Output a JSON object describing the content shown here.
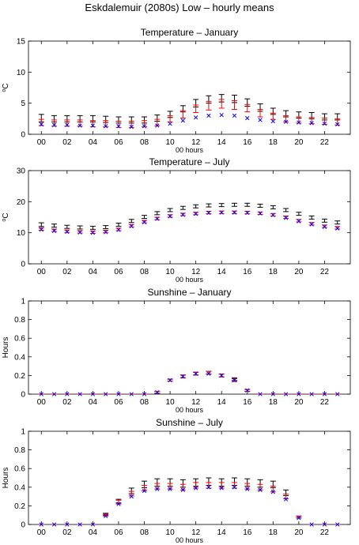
{
  "figure_title": "Eskdalemuir (2080s) Low – hourly means",
  "colors": {
    "upper": "#000000",
    "central": "#ff0000",
    "observed": "#0000ff"
  },
  "chart_data": [
    {
      "type": "scatter",
      "title": "Temperature – January",
      "xlabel": "00 hours",
      "ylabel": "°C",
      "ylabel_base": "C",
      "ylabel_sup": "o",
      "xlim": [
        -1,
        24
      ],
      "ylim": [
        0,
        15
      ],
      "yticks": [
        "0",
        "5",
        "10",
        "15"
      ],
      "ytick_values": [
        0,
        5,
        10,
        15
      ],
      "xticks": [
        "00",
        "02",
        "04",
        "06",
        "08",
        "10",
        "12",
        "14",
        "16",
        "18",
        "20",
        "22"
      ],
      "xtick_values": [
        0,
        2,
        4,
        6,
        8,
        10,
        12,
        14,
        16,
        18,
        20,
        22
      ],
      "x": [
        0,
        1,
        2,
        3,
        4,
        5,
        6,
        7,
        8,
        9,
        10,
        11,
        12,
        13,
        14,
        15,
        16,
        17,
        18,
        19,
        20,
        21,
        22,
        23
      ],
      "upper": {
        "center": [
          2.6,
          2.5,
          2.5,
          2.5,
          2.5,
          2.4,
          2.3,
          2.3,
          2.3,
          2.6,
          3.2,
          4.1,
          5.0,
          5.6,
          5.8,
          5.7,
          5.1,
          4.3,
          3.7,
          3.3,
          3.1,
          3.0,
          2.8,
          2.8
        ],
        "half": [
          0.6,
          0.5,
          0.5,
          0.5,
          0.5,
          0.5,
          0.5,
          0.5,
          0.5,
          0.5,
          0.5,
          0.5,
          0.6,
          0.6,
          0.6,
          0.6,
          0.6,
          0.6,
          0.5,
          0.5,
          0.5,
          0.5,
          0.5,
          0.5
        ]
      },
      "central": {
        "center": [
          1.9,
          1.8,
          1.8,
          1.8,
          1.7,
          1.7,
          1.6,
          1.6,
          1.7,
          1.9,
          2.5,
          3.2,
          4.1,
          4.6,
          4.9,
          4.7,
          4.2,
          3.4,
          2.9,
          2.5,
          2.3,
          2.2,
          2.1,
          2.0
        ],
        "half": [
          0.5,
          0.5,
          0.5,
          0.5,
          0.5,
          0.5,
          0.5,
          0.5,
          0.5,
          0.5,
          0.5,
          0.6,
          0.6,
          0.7,
          0.7,
          0.7,
          0.6,
          0.6,
          0.5,
          0.5,
          0.5,
          0.5,
          0.5,
          0.5
        ]
      },
      "observed": [
        1.6,
        1.5,
        1.5,
        1.4,
        1.4,
        1.3,
        1.3,
        1.2,
        1.3,
        1.4,
        1.7,
        2.2,
        2.7,
        3.0,
        3.1,
        3.0,
        2.6,
        2.3,
        2.1,
        2.0,
        1.9,
        1.8,
        1.7,
        1.6
      ]
    },
    {
      "type": "scatter",
      "title": "Temperature – July",
      "xlabel": "00 hours",
      "ylabel": "°C",
      "ylabel_base": "C",
      "ylabel_sup": "o",
      "xlim": [
        -1,
        24
      ],
      "ylim": [
        0,
        30
      ],
      "yticks": [
        "0",
        "10",
        "20",
        "30"
      ],
      "ytick_values": [
        0,
        10,
        20,
        30
      ],
      "xticks": [
        "00",
        "02",
        "04",
        "06",
        "08",
        "10",
        "12",
        "14",
        "16",
        "18",
        "20",
        "22"
      ],
      "xtick_values": [
        0,
        2,
        4,
        6,
        8,
        10,
        12,
        14,
        16,
        18,
        20,
        22
      ],
      "x": [
        0,
        1,
        2,
        3,
        4,
        5,
        6,
        7,
        8,
        9,
        10,
        11,
        12,
        13,
        14,
        15,
        16,
        17,
        18,
        19,
        20,
        21,
        22,
        23
      ],
      "upper": {
        "center": [
          12.6,
          12.3,
          11.9,
          11.7,
          11.6,
          11.8,
          12.6,
          13.8,
          15.1,
          16.3,
          17.3,
          18.0,
          18.5,
          18.8,
          18.9,
          19.0,
          19.0,
          18.7,
          18.2,
          17.3,
          16.1,
          14.9,
          13.9,
          13.3
        ],
        "half": [
          0.6,
          0.5,
          0.5,
          0.5,
          0.5,
          0.5,
          0.5,
          0.5,
          0.5,
          0.5,
          0.5,
          0.5,
          0.5,
          0.5,
          0.5,
          0.5,
          0.5,
          0.5,
          0.5,
          0.5,
          0.5,
          0.5,
          0.5,
          0.5
        ]
      },
      "central": {
        "center": [
          11.2,
          10.8,
          10.5,
          10.3,
          10.2,
          10.4,
          11.1,
          12.3,
          13.6,
          14.6,
          15.4,
          15.9,
          16.2,
          16.5,
          16.6,
          16.6,
          16.5,
          16.3,
          15.8,
          15.0,
          13.9,
          12.9,
          12.1,
          11.6
        ],
        "half": [
          0.4,
          0.4,
          0.4,
          0.4,
          0.4,
          0.4,
          0.4,
          0.4,
          0.4,
          0.4,
          0.4,
          0.4,
          0.4,
          0.4,
          0.4,
          0.4,
          0.4,
          0.4,
          0.4,
          0.4,
          0.4,
          0.4,
          0.4,
          0.4
        ]
      },
      "observed": [
        11.0,
        10.6,
        10.3,
        10.1,
        10.0,
        10.2,
        10.9,
        12.1,
        13.4,
        14.5,
        15.3,
        15.8,
        16.1,
        16.4,
        16.5,
        16.5,
        16.4,
        16.2,
        15.7,
        14.8,
        13.7,
        12.7,
        11.9,
        11.4
      ]
    },
    {
      "type": "scatter",
      "title": "Sunshine – January",
      "xlabel": "00 hours",
      "ylabel": "Hours",
      "ylabel_base": "Hours",
      "ylabel_sup": "",
      "xlim": [
        -1,
        24
      ],
      "ylim": [
        0,
        1
      ],
      "yticks": [
        "0",
        "0.2",
        "0.4",
        "0.6",
        "0.8",
        "1"
      ],
      "ytick_values": [
        0,
        0.2,
        0.4,
        0.6,
        0.8,
        1
      ],
      "xticks": [
        "00",
        "02",
        "04",
        "06",
        "08",
        "10",
        "12",
        "14",
        "16",
        "18",
        "20",
        "22"
      ],
      "xtick_values": [
        0,
        2,
        4,
        6,
        8,
        10,
        12,
        14,
        16,
        18,
        20,
        22
      ],
      "x": [
        0,
        1,
        2,
        3,
        4,
        5,
        6,
        7,
        8,
        9,
        10,
        11,
        12,
        13,
        14,
        15,
        16,
        17,
        18,
        19,
        20,
        21,
        22,
        23
      ],
      "upper": {
        "center": [
          0,
          0,
          0,
          0,
          0,
          0,
          0,
          0,
          0,
          0.02,
          0.15,
          0.19,
          0.22,
          0.23,
          0.2,
          0.16,
          0.04,
          0,
          0,
          0,
          0,
          0,
          0,
          0
        ],
        "half": [
          0,
          0,
          0,
          0,
          0,
          0,
          0,
          0,
          0,
          0.01,
          0.01,
          0.015,
          0.015,
          0.015,
          0.015,
          0.015,
          0.01,
          0,
          0,
          0,
          0,
          0,
          0,
          0
        ]
      },
      "central": {
        "center": [
          0,
          0,
          0,
          0,
          0,
          0,
          0,
          0,
          0,
          0.02,
          0.15,
          0.19,
          0.22,
          0.23,
          0.2,
          0.15,
          0.04,
          0,
          0,
          0,
          0,
          0,
          0,
          0
        ],
        "half": [
          0,
          0,
          0,
          0,
          0,
          0,
          0,
          0,
          0,
          0.01,
          0.01,
          0.015,
          0.015,
          0.015,
          0.015,
          0.015,
          0.01,
          0,
          0,
          0,
          0,
          0,
          0,
          0
        ]
      },
      "observed": [
        0,
        0,
        0,
        0,
        0,
        0,
        0,
        0,
        0,
        0.02,
        0.15,
        0.19,
        0.22,
        0.22,
        0.2,
        0.15,
        0.04,
        0,
        0,
        0,
        0,
        0,
        0,
        0
      ]
    },
    {
      "type": "scatter",
      "title": "Sunshine – July",
      "xlabel": "00 hours",
      "ylabel": "Hours",
      "ylabel_base": "Hours",
      "ylabel_sup": "",
      "xlim": [
        -1,
        24
      ],
      "ylim": [
        0,
        1
      ],
      "yticks": [
        "0",
        "0.2",
        "0.4",
        "0.6",
        "0.8",
        "1"
      ],
      "ytick_values": [
        0,
        0.2,
        0.4,
        0.6,
        0.8,
        1
      ],
      "xticks": [
        "00",
        "02",
        "04",
        "06",
        "08",
        "10",
        "12",
        "14",
        "16",
        "18",
        "20",
        "22"
      ],
      "xtick_values": [
        0,
        2,
        4,
        6,
        8,
        10,
        12,
        14,
        16,
        18,
        20,
        22
      ],
      "x": [
        0,
        1,
        2,
        3,
        4,
        5,
        6,
        7,
        8,
        9,
        10,
        11,
        12,
        13,
        14,
        15,
        16,
        17,
        18,
        19,
        20,
        21,
        22,
        23
      ],
      "upper": {
        "center": [
          0,
          0,
          0,
          0,
          0,
          0.11,
          0.25,
          0.36,
          0.43,
          0.45,
          0.45,
          0.44,
          0.45,
          0.46,
          0.45,
          0.46,
          0.45,
          0.44,
          0.43,
          0.34,
          0.08,
          0,
          0,
          0
        ],
        "half": [
          0,
          0,
          0,
          0,
          0,
          0.01,
          0.02,
          0.03,
          0.035,
          0.04,
          0.04,
          0.04,
          0.04,
          0.04,
          0.04,
          0.04,
          0.04,
          0.04,
          0.035,
          0.03,
          0.01,
          0,
          0,
          0
        ]
      },
      "central": {
        "center": [
          0,
          0,
          0,
          0,
          0,
          0.1,
          0.24,
          0.33,
          0.39,
          0.41,
          0.41,
          0.4,
          0.42,
          0.42,
          0.42,
          0.42,
          0.41,
          0.4,
          0.38,
          0.3,
          0.08,
          0,
          0,
          0
        ],
        "half": [
          0,
          0,
          0,
          0,
          0,
          0.01,
          0.02,
          0.025,
          0.03,
          0.03,
          0.03,
          0.03,
          0.03,
          0.03,
          0.03,
          0.03,
          0.03,
          0.03,
          0.03,
          0.025,
          0.01,
          0,
          0,
          0
        ]
      },
      "observed": [
        0,
        0,
        0,
        0,
        0,
        0.09,
        0.22,
        0.3,
        0.36,
        0.38,
        0.38,
        0.37,
        0.39,
        0.4,
        0.39,
        0.4,
        0.38,
        0.37,
        0.35,
        0.27,
        0.07,
        0,
        0,
        0
      ]
    }
  ]
}
